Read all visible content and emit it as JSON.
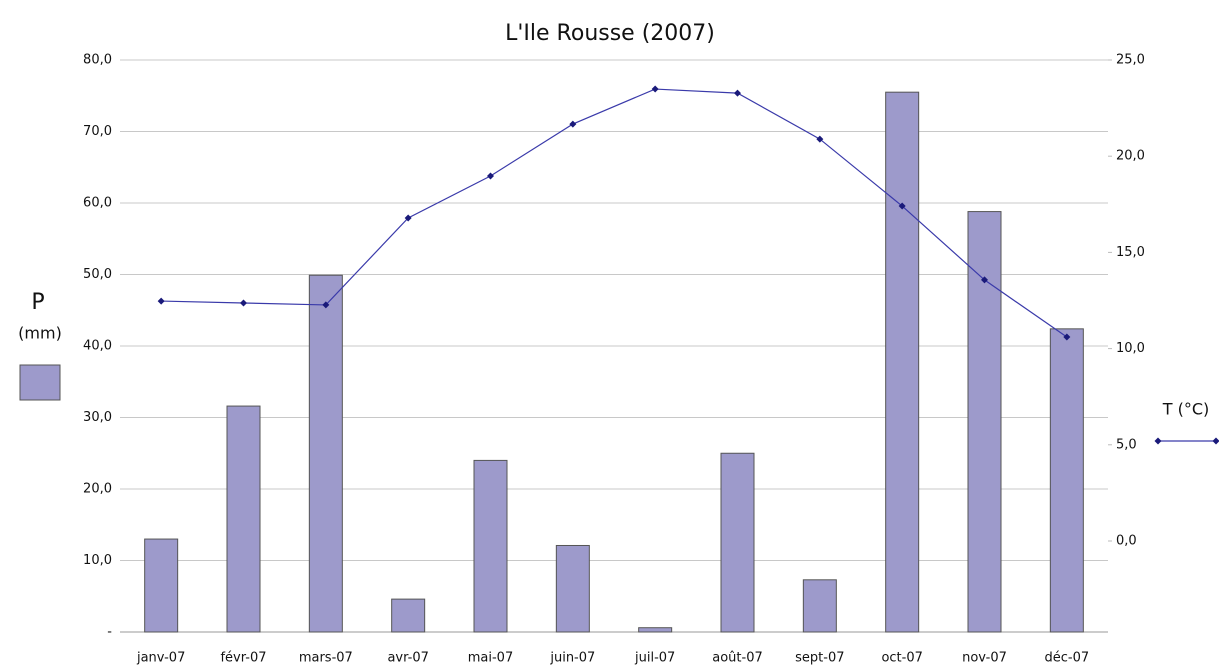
{
  "chart_data": {
    "type": "bar-line",
    "title": "L'Ile Rousse (2007)",
    "categories": [
      "janv-07",
      "févr-07",
      "mars-07",
      "avr-07",
      "mai-07",
      "juin-07",
      "juil-07",
      "août-07",
      "sept-07",
      "oct-07",
      "nov-07",
      "déc-07"
    ],
    "series": [
      {
        "name": "P",
        "unit": "(mm)",
        "type": "bar",
        "color": "#9d9acb",
        "values": [
          13.0,
          31.6,
          49.9,
          4.6,
          24.0,
          12.1,
          0.6,
          25.0,
          7.3,
          75.5,
          58.8,
          42.4
        ]
      },
      {
        "name": "T (°C)",
        "type": "line",
        "axis": "y2",
        "color": "#3a3aaa",
        "values": [
          12.47,
          12.37,
          12.27,
          16.79,
          18.97,
          21.67,
          23.49,
          23.28,
          20.89,
          17.41,
          13.57,
          10.6
        ]
      }
    ],
    "ylim": [
      0,
      80
    ],
    "yticks": [
      {
        "value": 0,
        "label": "-"
      },
      {
        "value": 10,
        "label": "10,0"
      },
      {
        "value": 20,
        "label": "20,0"
      },
      {
        "value": 30,
        "label": "30,0"
      },
      {
        "value": 40,
        "label": "40,0"
      },
      {
        "value": 50,
        "label": "50,0"
      },
      {
        "value": 60,
        "label": "60,0"
      },
      {
        "value": 70,
        "label": "70,0"
      },
      {
        "value": 80,
        "label": "80,0"
      }
    ],
    "y2lim": [
      -4.73,
      25
    ],
    "y2ticks": [
      {
        "value": 0,
        "label": "0,0"
      },
      {
        "value": 5,
        "label": "5,0"
      },
      {
        "value": 10,
        "label": "10,0"
      },
      {
        "value": 15,
        "label": "15,0"
      },
      {
        "value": 20,
        "label": "20,0"
      },
      {
        "value": 25,
        "label": "25,0"
      }
    ],
    "grid": true
  }
}
